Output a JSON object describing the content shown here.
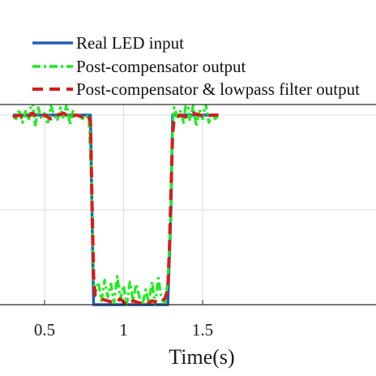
{
  "chart_data": {
    "type": "line",
    "xlabel": "Time(s)",
    "ylabel": "",
    "xlim": [
      0.3,
      1.6
    ],
    "ylim": [
      0,
      1.1
    ],
    "grid": true,
    "legend_position": "top",
    "x_ticks": [
      {
        "value": 0.5,
        "label": "0.5"
      },
      {
        "value": 1.0,
        "label": "1"
      },
      {
        "value": 1.5,
        "label": "1.5"
      }
    ],
    "y_ticks": [
      0,
      0.5,
      1.0
    ],
    "series": [
      {
        "name": "Real LED input",
        "color": "#1f5fb4",
        "style": "solid",
        "x": [
          0.3,
          0.79,
          0.8,
          0.81,
          0.82,
          1.28,
          1.3,
          1.31,
          1.6
        ],
        "y": [
          1.0,
          1.0,
          0.5,
          0.0,
          0.0,
          0.0,
          0.5,
          1.0,
          1.0
        ]
      },
      {
        "name": "Post-compensator output",
        "color": "#1aee1a",
        "style": "dashdot",
        "x": [
          0.3,
          0.32,
          0.34,
          0.36,
          0.38,
          0.4,
          0.42,
          0.44,
          0.46,
          0.48,
          0.5,
          0.52,
          0.54,
          0.56,
          0.58,
          0.6,
          0.62,
          0.64,
          0.66,
          0.68,
          0.7,
          0.72,
          0.74,
          0.76,
          0.78,
          0.8,
          0.81,
          0.82,
          0.84,
          0.86,
          0.88,
          0.9,
          0.92,
          0.94,
          0.96,
          0.98,
          1.0,
          1.02,
          1.04,
          1.06,
          1.08,
          1.1,
          1.12,
          1.14,
          1.16,
          1.18,
          1.2,
          1.22,
          1.24,
          1.26,
          1.28,
          1.3,
          1.31,
          1.32,
          1.34,
          1.36,
          1.38,
          1.4,
          1.42,
          1.44,
          1.46,
          1.48,
          1.5,
          1.52,
          1.54,
          1.56,
          1.58,
          1.6
        ],
        "y": [
          1.0,
          0.98,
          1.03,
          0.96,
          1.02,
          0.97,
          1.09,
          0.94,
          1.04,
          0.98,
          1.01,
          0.95,
          1.05,
          1.0,
          0.97,
          1.04,
          0.98,
          1.06,
          0.95,
          1.02,
          0.99,
          1.0,
          0.98,
          1.0,
          0.99,
          0.6,
          0.12,
          0.06,
          0.12,
          0.02,
          0.13,
          0.04,
          0.11,
          0.01,
          0.15,
          0.03,
          0.1,
          0.0,
          0.12,
          0.02,
          0.11,
          0.04,
          0.0,
          0.08,
          0.01,
          0.12,
          0.0,
          0.14,
          0.03,
          0.01,
          0.12,
          0.5,
          0.95,
          1.04,
          0.99,
          1.02,
          0.96,
          1.1,
          0.97,
          1.05,
          0.94,
          1.03,
          0.98,
          1.06,
          0.96,
          1.01,
          0.98,
          1.0
        ]
      },
      {
        "name": "Post-compensator & lowpass filter output",
        "color": "#d91c1c",
        "style": "dashed",
        "x": [
          0.3,
          0.34,
          0.38,
          0.42,
          0.46,
          0.5,
          0.54,
          0.58,
          0.62,
          0.66,
          0.7,
          0.74,
          0.77,
          0.79,
          0.8,
          0.81,
          0.82,
          0.86,
          0.9,
          0.94,
          0.98,
          1.02,
          1.06,
          1.1,
          1.14,
          1.18,
          1.22,
          1.26,
          1.28,
          1.29,
          1.3,
          1.31,
          1.32,
          1.36,
          1.4,
          1.44,
          1.48,
          1.52,
          1.56,
          1.6
        ],
        "y": [
          0.99,
          1.0,
          0.98,
          1.01,
          0.99,
          1.0,
          0.98,
          1.0,
          1.01,
          0.99,
          1.0,
          0.99,
          1.0,
          0.97,
          0.55,
          0.15,
          0.05,
          0.03,
          0.02,
          0.01,
          0.03,
          0.0,
          0.02,
          0.01,
          0.0,
          0.02,
          0.01,
          0.03,
          0.08,
          0.3,
          0.6,
          0.9,
          0.98,
          1.0,
          0.99,
          1.01,
          1.0,
          0.99,
          1.0,
          1.0
        ]
      }
    ]
  }
}
